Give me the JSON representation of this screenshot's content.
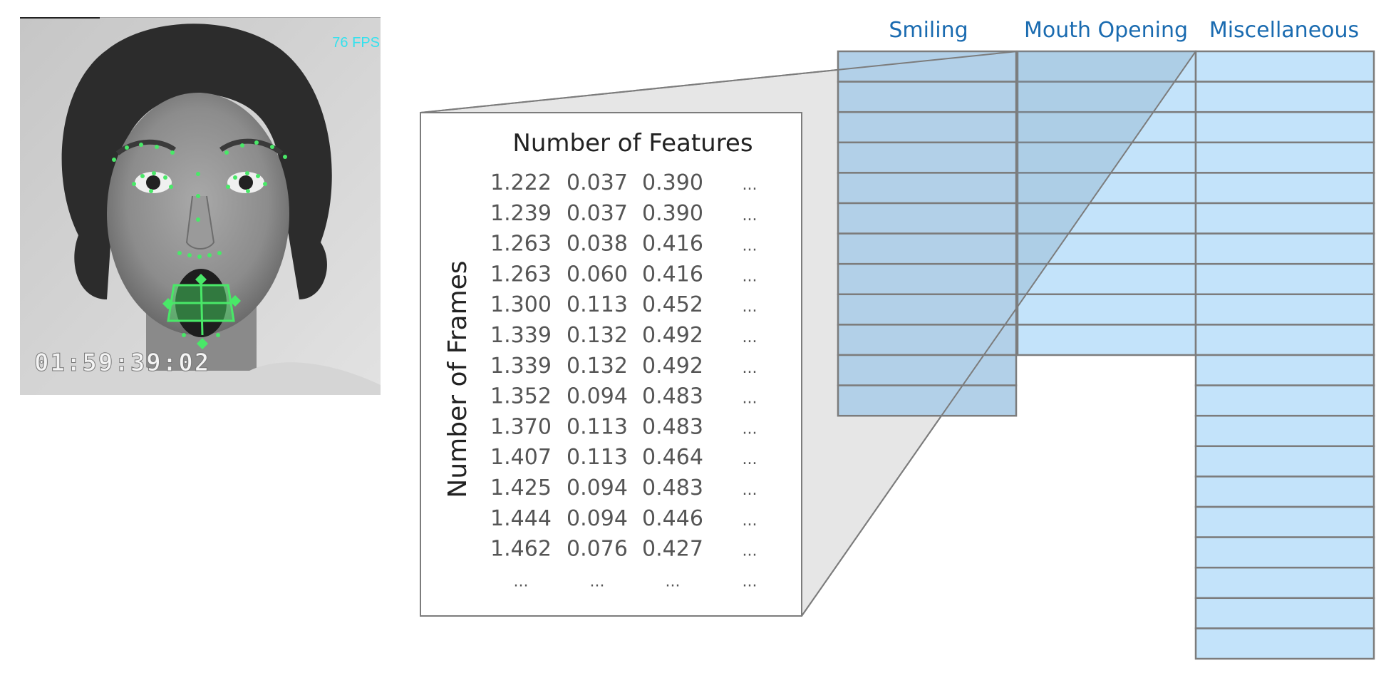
{
  "video_frame": {
    "fps_label": "76 FPS",
    "timecode": "01:59:39:02"
  },
  "matrix_panel": {
    "col_header": "Number of Features",
    "row_header": "Number of Frames",
    "rows": [
      [
        "1.222",
        "0.037",
        "0.390",
        "..."
      ],
      [
        "1.239",
        "0.037",
        "0.390",
        "..."
      ],
      [
        "1.263",
        "0.038",
        "0.416",
        "..."
      ],
      [
        "1.263",
        "0.060",
        "0.416",
        "..."
      ],
      [
        "1.300",
        "0.113",
        "0.452",
        "..."
      ],
      [
        "1.339",
        "0.132",
        "0.492",
        "..."
      ],
      [
        "1.339",
        "0.132",
        "0.492",
        "..."
      ],
      [
        "1.352",
        "0.094",
        "0.483",
        "..."
      ],
      [
        "1.370",
        "0.113",
        "0.483",
        "..."
      ],
      [
        "1.407",
        "0.113",
        "0.464",
        "..."
      ],
      [
        "1.425",
        "0.094",
        "0.483",
        "..."
      ],
      [
        "1.444",
        "0.094",
        "0.446",
        "..."
      ],
      [
        "1.462",
        "0.076",
        "0.427",
        "..."
      ],
      [
        "...",
        "...",
        "...",
        "..."
      ]
    ]
  },
  "sequence_blocks": [
    {
      "label": "Smiling",
      "frames": 12,
      "highlighted": true
    },
    {
      "label": "Mouth Opening",
      "frames": 10,
      "highlighted": false
    },
    {
      "label": "Miscellaneous",
      "frames": 20,
      "highlighted": false
    }
  ],
  "colors": {
    "block_fill": "#c3e3fa",
    "block_highlight": "#b2d0e8",
    "block_stroke": "#7c7c7c",
    "label_blue": "#1a6bb0",
    "magnify_fill": "#e6e6e6",
    "table_text": "#555555",
    "landmark_green": "#49e868",
    "fps_cyan": "#33e2ee"
  }
}
